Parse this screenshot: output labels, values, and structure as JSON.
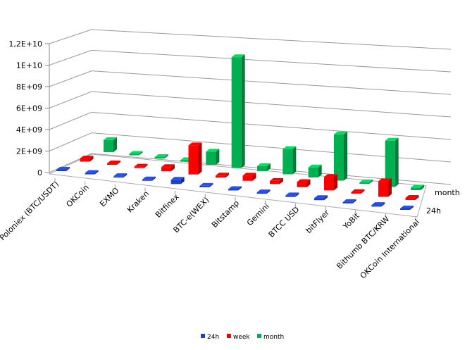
{
  "chart_data": {
    "type": "bar",
    "subtype": "3d-column",
    "title": "",
    "xlabel": "",
    "ylabel": "",
    "ylim": [
      0,
      12000000000
    ],
    "y_ticks": [
      "0",
      "2E+09",
      "4E+09",
      "6E+09",
      "8E+09",
      "1E+10",
      "1,2E+10"
    ],
    "depth_labels": [
      "24h",
      "month"
    ],
    "grid": true,
    "legend_position": "bottom",
    "categories": [
      "Poloniex (BTC/USDT)",
      "OKCoin",
      "EXMO",
      "Kraken",
      "Bitfinex",
      "BTC-e(WEX)",
      "Bitstamp",
      "Gemini",
      "BTCC  USD",
      "bitFlyer",
      "YoBit",
      "Bithumb BTC/KRW",
      "OKCoin  International"
    ],
    "series": [
      {
        "name": "24h",
        "color": "#1f3fbf",
        "values": [
          100000000,
          80000000,
          80000000,
          80000000,
          400000000,
          80000000,
          80000000,
          80000000,
          150000000,
          200000000,
          80000000,
          150000000,
          80000000
        ]
      },
      {
        "name": "week",
        "color": "#ff0000",
        "values": [
          300000000,
          100000000,
          100000000,
          400000000,
          2800000000,
          200000000,
          500000000,
          300000000,
          500000000,
          1300000000,
          150000000,
          1500000000,
          200000000
        ]
      },
      {
        "name": "month",
        "color": "#00b050",
        "values": [
          1200000000,
          100000000,
          100000000,
          80000000,
          1300000000,
          11000000000,
          500000000,
          2500000000,
          1000000000,
          4600000000,
          150000000,
          4600000000,
          250000000
        ]
      }
    ]
  }
}
